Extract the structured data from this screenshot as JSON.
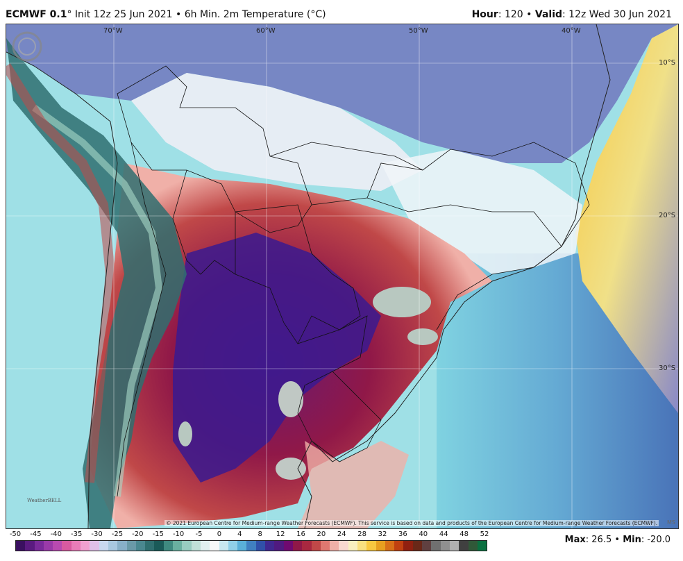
{
  "header": {
    "model": "ECMWF 0.1",
    "init_text": "° Init 12z 25 Jun 2021",
    "bullet": "•",
    "field": "6h Min. 2m Temperature (°C)",
    "hour_label": "Hour",
    "hour_value": ": 120",
    "valid_label": "Valid",
    "valid_value": ": 12z Wed 30 Jun 2021"
  },
  "map": {
    "lon_labels": [
      "70°W",
      "60°W",
      "50°W",
      "40°W"
    ],
    "lat_labels": [
      "10°S",
      "20°S",
      "30°S"
    ],
    "copyright": "© 2021 European Centre for Medium-range Weather Forecasts (ECMWF). This service is based on data and products of the European Centre for Medium-range Weather Forecasts (ECMWF).",
    "logo_text": "WeatherBELL",
    "corner_text": "MS"
  },
  "legend": {
    "ticks": [
      "-50",
      "-45",
      "-40",
      "-35",
      "-30",
      "-25",
      "-20",
      "-15",
      "-10",
      "-5",
      "0",
      "4",
      "8",
      "12",
      "16",
      "20",
      "24",
      "28",
      "32",
      "36",
      "40",
      "44",
      "48",
      "52"
    ],
    "colors": [
      "#3a1060",
      "#5a1a80",
      "#7a2a9a",
      "#9a3aa8",
      "#b84ab0",
      "#d85aa0",
      "#e87cb8",
      "#f0a0d0",
      "#e0c0e8",
      "#c8d8f0",
      "#a8c8e0",
      "#88b0c8",
      "#6a9aa8",
      "#4a8890",
      "#2f6f70",
      "#1a5a58",
      "#3f8a80",
      "#6ab0a0",
      "#98ccc0",
      "#c0e0d8",
      "#e0f0f0",
      "#f8f8f8",
      "#c8e8f0",
      "#90d0e8",
      "#5ab0d8",
      "#4080c0",
      "#3050a8",
      "#402890",
      "#501a80",
      "#700a70",
      "#901848",
      "#a82840",
      "#c04848",
      "#e07870",
      "#f0b0a8",
      "#f8d8d0",
      "#f8f0c0",
      "#f8e080",
      "#f8c840",
      "#e8a020",
      "#d87018",
      "#c04010",
      "#902010",
      "#6a2818",
      "#604040",
      "#707070",
      "#909090",
      "#b0b0b0",
      "#404040",
      "#305838",
      "#0a7040"
    ],
    "max_label": "Max",
    "max_value": ": 26.5",
    "min_label": "Min",
    "min_value": ": -20.0",
    "bullet": "•"
  }
}
